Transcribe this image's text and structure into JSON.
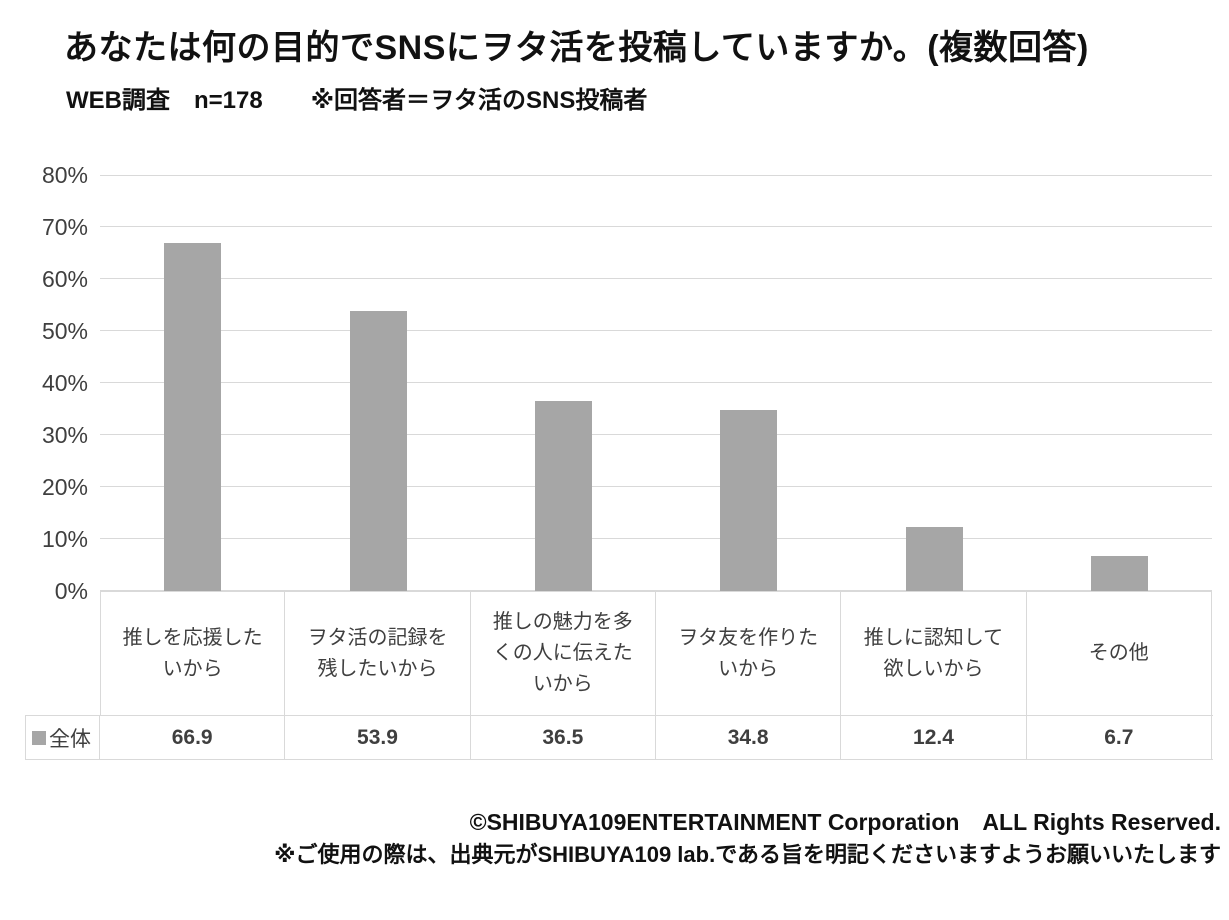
{
  "header": {
    "title": "あなたは何の目的でSNSにヲタ活を投稿していますか。(複数回答)",
    "subtitle": "WEB調査　n=178　　※回答者＝ヲタ活のSNS投稿者"
  },
  "chart_data": {
    "type": "bar",
    "title": "あなたは何の目的でSNSにヲタ活を投稿していますか。(複数回答)",
    "subtitle": "WEB調査　n=178　※回答者＝ヲタ活のSNS投稿者",
    "categories": [
      "推しを応援したいから",
      "ヲタ活の記録を残したいから",
      "推しの魅力を多くの人に伝えたいから",
      "ヲタ友を作りたいから",
      "推しに認知して欲しいから",
      "その他"
    ],
    "category_lines": [
      [
        "推しを応援した",
        "いから"
      ],
      [
        "ヲタ活の記録を",
        "残したいから"
      ],
      [
        "推しの魅力を多",
        "くの人に伝えた",
        "いから"
      ],
      [
        "ヲタ友を作りた",
        "いから"
      ],
      [
        "推しに認知して",
        "欲しいから"
      ],
      [
        "その他"
      ]
    ],
    "series": [
      {
        "name": "全体",
        "values": [
          66.9,
          53.9,
          36.5,
          34.8,
          12.4,
          6.7
        ]
      }
    ],
    "ylim": [
      0,
      80
    ],
    "ytick_step": 10,
    "yticks": [
      "0%",
      "10%",
      "20%",
      "30%",
      "40%",
      "50%",
      "60%",
      "70%",
      "80%"
    ],
    "grid": true,
    "legend_position": "data-table-left",
    "data_table_shown": true,
    "bar_color": "#a6a6a6",
    "gridline_color": "#d9d9d9",
    "axis_text_color": "#3f3f3f"
  },
  "footer": {
    "copyright": "©SHIBUYA109ENTERTAINMENT Corporation　ALL Rights Reserved.",
    "usage_note": "※ご使用の際は、出典元がSHIBUYA109 lab.である旨を明記くださいますようお願いいたします"
  }
}
